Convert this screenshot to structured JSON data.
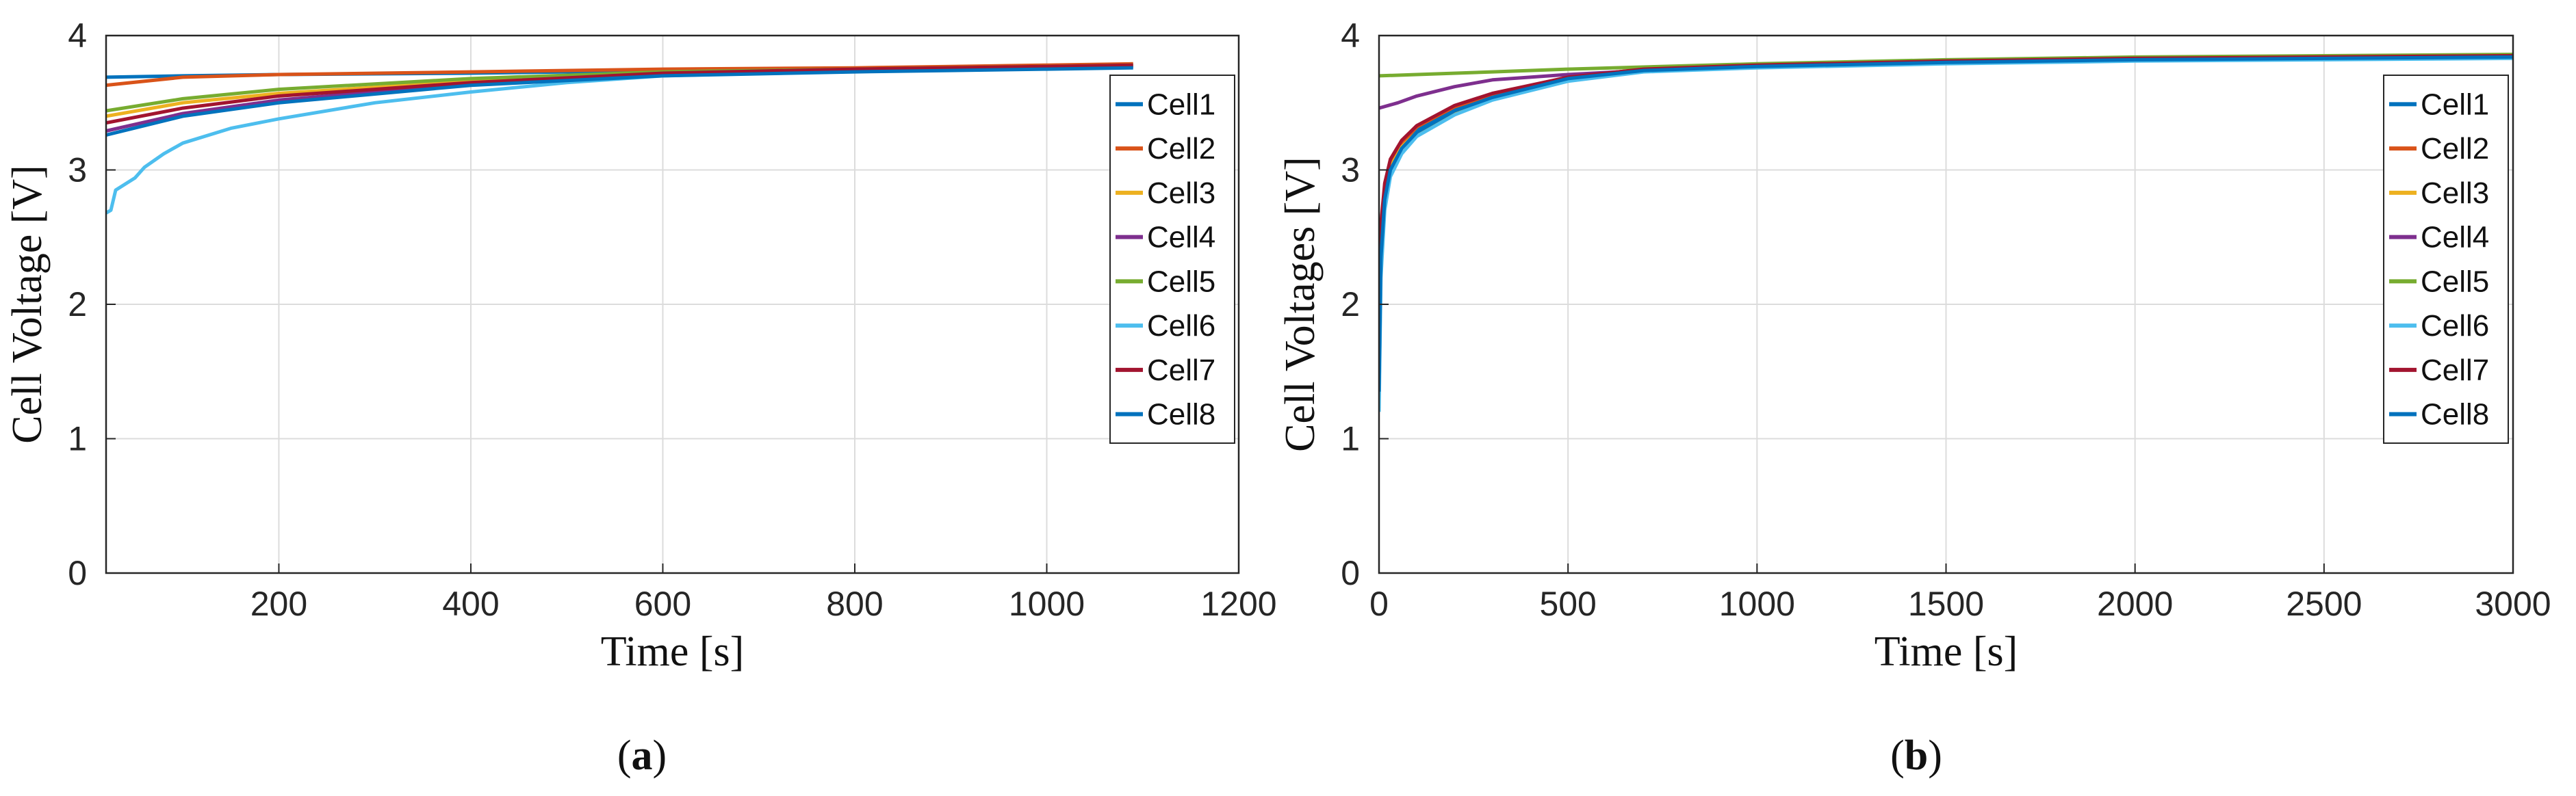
{
  "panel_labels": [
    "(a)",
    "(b)"
  ],
  "chart_data": [
    {
      "type": "line",
      "panel_label": "(a)",
      "title": "",
      "xlabel": "Time [s]",
      "ylabel": "Cell Voltage [V]",
      "xlim": [
        20,
        1200
      ],
      "ylim": [
        0,
        4
      ],
      "xticks": [
        200,
        400,
        600,
        800,
        1000,
        1200
      ],
      "yticks": [
        0,
        1,
        2,
        3,
        4
      ],
      "grid": true,
      "legend_position": "top-right",
      "series": [
        {
          "name": "Cell1",
          "color": "#0072BD",
          "x": [
            20,
            100,
            200,
            400,
            600,
            800,
            1000,
            1090
          ],
          "y": [
            3.69,
            3.7,
            3.71,
            3.72,
            3.74,
            3.75,
            3.76,
            3.77
          ]
        },
        {
          "name": "Cell2",
          "color": "#D95319",
          "x": [
            20,
            100,
            200,
            400,
            600,
            800,
            1000,
            1090
          ],
          "y": [
            3.63,
            3.69,
            3.71,
            3.73,
            3.75,
            3.76,
            3.78,
            3.79
          ]
        },
        {
          "name": "Cell3",
          "color": "#EDB120",
          "x": [
            20,
            100,
            200,
            400,
            600,
            800,
            1000,
            1090
          ],
          "y": [
            3.4,
            3.5,
            3.57,
            3.66,
            3.72,
            3.75,
            3.77,
            3.78
          ]
        },
        {
          "name": "Cell4",
          "color": "#7E2F8E",
          "x": [
            20,
            100,
            200,
            400,
            600,
            800,
            1000,
            1090
          ],
          "y": [
            3.29,
            3.42,
            3.52,
            3.64,
            3.71,
            3.74,
            3.76,
            3.77
          ]
        },
        {
          "name": "Cell5",
          "color": "#77AC30",
          "x": [
            20,
            100,
            200,
            400,
            600,
            800,
            1000,
            1090
          ],
          "y": [
            3.44,
            3.53,
            3.6,
            3.68,
            3.73,
            3.75,
            3.77,
            3.78
          ]
        },
        {
          "name": "Cell6",
          "color": "#4DBEEE",
          "x": [
            20,
            25,
            30,
            50,
            60,
            80,
            100,
            150,
            200,
            300,
            400,
            500,
            600,
            700,
            800,
            1000,
            1090
          ],
          "y": [
            2.68,
            2.7,
            2.85,
            2.94,
            3.02,
            3.12,
            3.2,
            3.31,
            3.38,
            3.5,
            3.58,
            3.65,
            3.7,
            3.72,
            3.74,
            3.76,
            3.77
          ]
        },
        {
          "name": "Cell7",
          "color": "#A2142F",
          "x": [
            20,
            100,
            200,
            400,
            600,
            800,
            1000,
            1090
          ],
          "y": [
            3.35,
            3.46,
            3.55,
            3.65,
            3.72,
            3.75,
            3.77,
            3.78
          ]
        },
        {
          "name": "Cell8",
          "color": "#0072BD",
          "x": [
            20,
            100,
            200,
            400,
            600,
            800,
            1000,
            1090
          ],
          "y": [
            3.26,
            3.4,
            3.5,
            3.63,
            3.7,
            3.73,
            3.75,
            3.76
          ]
        }
      ]
    },
    {
      "type": "line",
      "panel_label": "(b)",
      "title": "",
      "xlabel": "Time [s]",
      "ylabel": "Cell Voltages [V]",
      "xlim": [
        0,
        3000
      ],
      "ylim": [
        0,
        4
      ],
      "xticks": [
        0,
        500,
        1000,
        1500,
        2000,
        2500,
        3000
      ],
      "yticks": [
        0,
        1,
        2,
        3,
        4
      ],
      "grid": true,
      "legend_position": "top-right",
      "series": [
        {
          "name": "Cell1",
          "color": "#0072BD",
          "x": [
            0,
            5,
            15,
            30,
            60,
            100,
            200,
            300,
            500,
            700,
            1000,
            1500,
            2000,
            2500,
            3000
          ],
          "y": [
            1.3,
            2.3,
            2.75,
            3.0,
            3.18,
            3.3,
            3.45,
            3.55,
            3.68,
            3.74,
            3.77,
            3.8,
            3.82,
            3.83,
            3.84
          ]
        },
        {
          "name": "Cell2",
          "color": "#D95319",
          "x": [
            0,
            5,
            15,
            30,
            60,
            100,
            200,
            300,
            500,
            700,
            1000,
            1500,
            2000,
            2500,
            3000
          ],
          "y": [
            1.5,
            2.5,
            2.85,
            3.05,
            3.2,
            3.32,
            3.47,
            3.56,
            3.69,
            3.75,
            3.78,
            3.81,
            3.83,
            3.84,
            3.85
          ]
        },
        {
          "name": "Cell3",
          "color": "#EDB120",
          "x": [
            0,
            5,
            15,
            30,
            60,
            100,
            200,
            300,
            500,
            700,
            1000,
            1500,
            2000,
            2500,
            3000
          ],
          "y": [
            1.4,
            2.4,
            2.8,
            3.02,
            3.17,
            3.28,
            3.43,
            3.53,
            3.67,
            3.74,
            3.77,
            3.8,
            3.82,
            3.84,
            3.85
          ]
        },
        {
          "name": "Cell4",
          "color": "#7E2F8E",
          "x": [
            0,
            50,
            100,
            200,
            300,
            500,
            700,
            1000,
            1500,
            2000,
            2500,
            3000
          ],
          "y": [
            3.46,
            3.5,
            3.55,
            3.62,
            3.67,
            3.71,
            3.74,
            3.77,
            3.8,
            3.82,
            3.83,
            3.84
          ]
        },
        {
          "name": "Cell5",
          "color": "#77AC30",
          "x": [
            0,
            100,
            300,
            500,
            1000,
            1500,
            2000,
            2500,
            3000
          ],
          "y": [
            3.7,
            3.71,
            3.73,
            3.75,
            3.79,
            3.82,
            3.84,
            3.85,
            3.86
          ]
        },
        {
          "name": "Cell6",
          "color": "#4DBEEE",
          "x": [
            0,
            5,
            15,
            30,
            60,
            100,
            200,
            300,
            500,
            700,
            1000,
            1500,
            2000,
            2500,
            3000
          ],
          "y": [
            1.2,
            2.2,
            2.7,
            2.95,
            3.12,
            3.25,
            3.41,
            3.52,
            3.66,
            3.73,
            3.76,
            3.79,
            3.81,
            3.82,
            3.83
          ]
        },
        {
          "name": "Cell7",
          "color": "#A2142F",
          "x": [
            0,
            5,
            15,
            30,
            60,
            100,
            200,
            300,
            500,
            700,
            1000,
            1500,
            2000,
            2500,
            3000
          ],
          "y": [
            1.6,
            2.6,
            2.9,
            3.08,
            3.22,
            3.33,
            3.48,
            3.57,
            3.69,
            3.75,
            3.78,
            3.81,
            3.83,
            3.84,
            3.85
          ]
        },
        {
          "name": "Cell8",
          "color": "#0072BD",
          "x": [
            0,
            5,
            15,
            30,
            60,
            100,
            200,
            300,
            500,
            700,
            1000,
            1500,
            2000,
            2500,
            3000
          ],
          "y": [
            1.35,
            2.35,
            2.78,
            3.0,
            3.16,
            3.28,
            3.44,
            3.54,
            3.68,
            3.74,
            3.77,
            3.8,
            3.82,
            3.83,
            3.84
          ]
        }
      ]
    }
  ]
}
